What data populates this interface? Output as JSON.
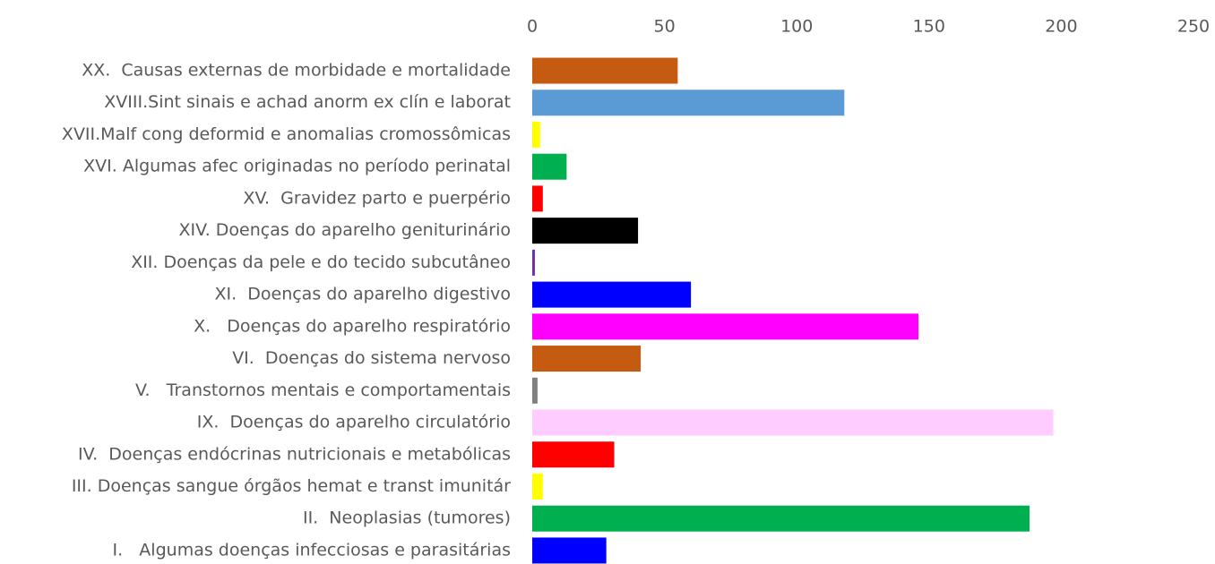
{
  "chart_data": {
    "type": "bar",
    "orientation": "horizontal",
    "categories": [
      "XX.  Causas externas de morbidade e mortalidade",
      "XVIII.Sint sinais e achad anorm ex clín e laborat",
      "XVII.Malf cong deformid e anomalias cromossômicas",
      "XVI. Algumas afec originadas no período perinatal",
      "XV.  Gravidez parto e puerpério",
      "XIV. Doenças do aparelho geniturinário",
      "XII. Doenças da pele e do tecido subcutâneo",
      "XI.  Doenças do aparelho digestivo",
      "X.   Doenças do aparelho respiratório",
      "VI.  Doenças do sistema nervoso",
      "V.   Transtornos mentais e comportamentais",
      "IX.  Doenças do aparelho circulatório",
      "IV.  Doenças endócrinas nutricionais e metabólicas",
      "III. Doenças sangue órgãos hemat e transt imunitár",
      "II.  Neoplasias (tumores)",
      "I.   Algumas doenças infecciosas e parasitárias"
    ],
    "values": [
      55,
      118,
      3,
      13,
      4,
      40,
      1,
      60,
      146,
      41,
      2,
      197,
      31,
      4,
      188,
      28
    ],
    "colors": [
      "#c55a11",
      "#5b9bd5",
      "#ffff00",
      "#00b050",
      "#ff0000",
      "#000000",
      "#7030a0",
      "#0000ff",
      "#ff00ff",
      "#c55a11",
      "#808080",
      "#ffccff",
      "#ff0000",
      "#ffff00",
      "#00b050",
      "#0000ff"
    ],
    "xlim": [
      0,
      250
    ],
    "xticks": [
      0,
      50,
      100,
      150,
      200,
      250
    ],
    "grid": false
  }
}
